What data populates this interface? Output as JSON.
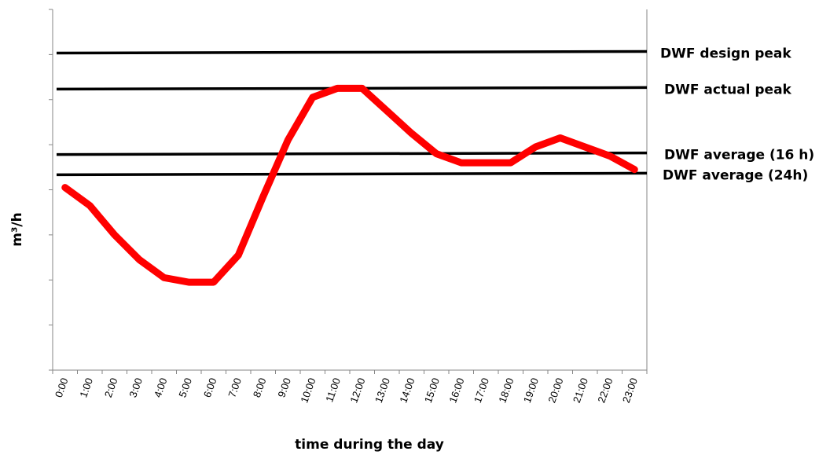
{
  "chart_data": {
    "type": "line",
    "title": "",
    "xlabel": "time during the day",
    "ylabel": "m³/h",
    "categories": [
      "0:00",
      "1:00",
      "2:00",
      "3:00",
      "4:00",
      "5:00",
      "6:00",
      "7:00",
      "8:00",
      "9:00",
      "10:00",
      "11:00",
      "12:00",
      "13:00",
      "14:00",
      "15:00",
      "16:00",
      "17:00",
      "18:00",
      "19:00",
      "20:00",
      "21:00",
      "22:00",
      "23:00"
    ],
    "ylim": [
      0,
      8
    ],
    "grid": false,
    "series": [
      {
        "color": "#ff0000",
        "values": [
          4.05,
          3.65,
          3.0,
          2.45,
          2.05,
          1.95,
          1.95,
          2.55,
          3.85,
          5.1,
          6.05,
          6.25,
          6.25,
          5.75,
          5.25,
          4.8,
          4.6,
          4.6,
          4.6,
          4.95,
          5.15,
          4.95,
          4.75,
          4.45
        ]
      }
    ],
    "reference_lines": [
      {
        "label": "DWF design peak",
        "y": 7.05,
        "color": "#000000"
      },
      {
        "label": "DWF actual peak",
        "y": 6.25,
        "color": "#000000"
      },
      {
        "label": "DWF average (16 h)",
        "y": 4.8,
        "color": "#000000"
      },
      {
        "label": "DWF average (24h)",
        "y": 4.35,
        "color": "#000000"
      }
    ],
    "legend": "right"
  }
}
